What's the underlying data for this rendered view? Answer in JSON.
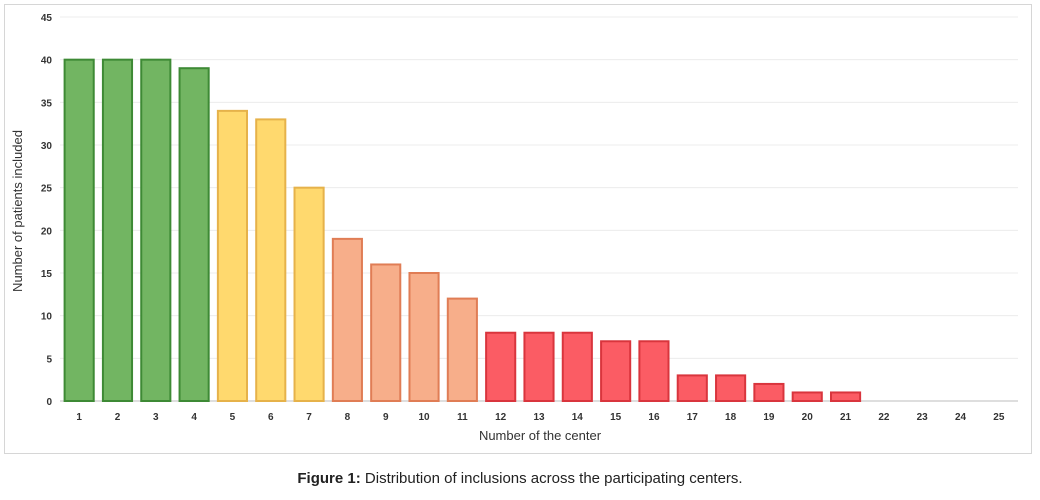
{
  "chart_data": {
    "type": "bar",
    "xlabel": "Number of the center",
    "ylabel": "Number of patients included",
    "ylim": [
      0,
      45
    ],
    "yticks": [
      0,
      5,
      10,
      15,
      20,
      25,
      30,
      35,
      40,
      45
    ],
    "grid": true,
    "categories": [
      "1",
      "2",
      "3",
      "4",
      "5",
      "6",
      "7",
      "8",
      "9",
      "10",
      "11",
      "12",
      "13",
      "14",
      "15",
      "16",
      "17",
      "18",
      "19",
      "20",
      "21",
      "22",
      "23",
      "24",
      "25"
    ],
    "values": [
      40,
      40,
      40,
      39,
      34,
      33,
      25,
      19,
      16,
      15,
      12,
      8,
      8,
      8,
      7,
      7,
      3,
      3,
      2,
      1,
      1,
      0,
      0,
      0,
      0
    ],
    "bar_colors": {
      "green": {
        "fill": "#72b562",
        "stroke": "#3e8a35"
      },
      "yellow": {
        "fill": "#ffd96e",
        "stroke": "#e6b24a"
      },
      "salmon": {
        "fill": "#f7ae8a",
        "stroke": "#e07d55"
      },
      "red": {
        "fill": "#fb5c64",
        "stroke": "#d9353d"
      }
    },
    "bar_color_keys": [
      "green",
      "green",
      "green",
      "green",
      "yellow",
      "yellow",
      "yellow",
      "salmon",
      "salmon",
      "salmon",
      "salmon",
      "red",
      "red",
      "red",
      "red",
      "red",
      "red",
      "red",
      "red",
      "red",
      "red",
      "red",
      "red",
      "red",
      "red"
    ]
  },
  "caption": {
    "label": "Figure 1:",
    "text": " Distribution of inclusions across the participating centers."
  }
}
